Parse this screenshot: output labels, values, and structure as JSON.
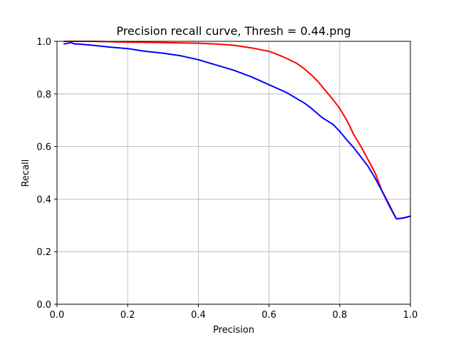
{
  "chart_data": {
    "type": "line",
    "title": "Precision recall curve, Thresh = 0.44.png",
    "xlabel": "Precision",
    "ylabel": "Recall",
    "xlim": [
      0,
      1
    ],
    "ylim": [
      0,
      1
    ],
    "xticks": [
      "0.0",
      "0.2",
      "0.4",
      "0.6",
      "0.8",
      "1.0"
    ],
    "yticks": [
      "0.0",
      "0.2",
      "0.4",
      "0.6",
      "0.8",
      "1.0"
    ],
    "grid": true,
    "legend": null,
    "series": [
      {
        "color": "#ff0000",
        "x": [
          0.02,
          0.05,
          0.1,
          0.2,
          0.3,
          0.4,
          0.45,
          0.5,
          0.55,
          0.6,
          0.62,
          0.65,
          0.68,
          0.7,
          0.72,
          0.74,
          0.76,
          0.78,
          0.8,
          0.82,
          0.84,
          0.86,
          0.88,
          0.9,
          0.92,
          0.94,
          0.96,
          0.98,
          1.0
        ],
        "y": [
          1.0,
          1.0,
          1.0,
          0.997,
          0.995,
          0.993,
          0.99,
          0.985,
          0.975,
          0.962,
          0.952,
          0.935,
          0.915,
          0.895,
          0.872,
          0.845,
          0.812,
          0.78,
          0.745,
          0.7,
          0.645,
          0.6,
          0.55,
          0.5,
          0.43,
          0.38,
          0.325,
          0.328,
          0.335
        ]
      },
      {
        "color": "#0000ff",
        "x": [
          0.02,
          0.04,
          0.05,
          0.06,
          0.1,
          0.15,
          0.2,
          0.25,
          0.3,
          0.35,
          0.4,
          0.45,
          0.5,
          0.55,
          0.6,
          0.65,
          0.7,
          0.72,
          0.75,
          0.78,
          0.8,
          0.82,
          0.84,
          0.86,
          0.88,
          0.9,
          0.92,
          0.94,
          0.96,
          0.98,
          1.0
        ],
        "y": [
          0.99,
          0.995,
          0.99,
          0.99,
          0.985,
          0.978,
          0.972,
          0.962,
          0.955,
          0.945,
          0.93,
          0.91,
          0.89,
          0.865,
          0.835,
          0.805,
          0.765,
          0.745,
          0.71,
          0.685,
          0.658,
          0.625,
          0.595,
          0.56,
          0.525,
          0.48,
          0.43,
          0.375,
          0.325,
          0.328,
          0.335
        ]
      }
    ]
  }
}
